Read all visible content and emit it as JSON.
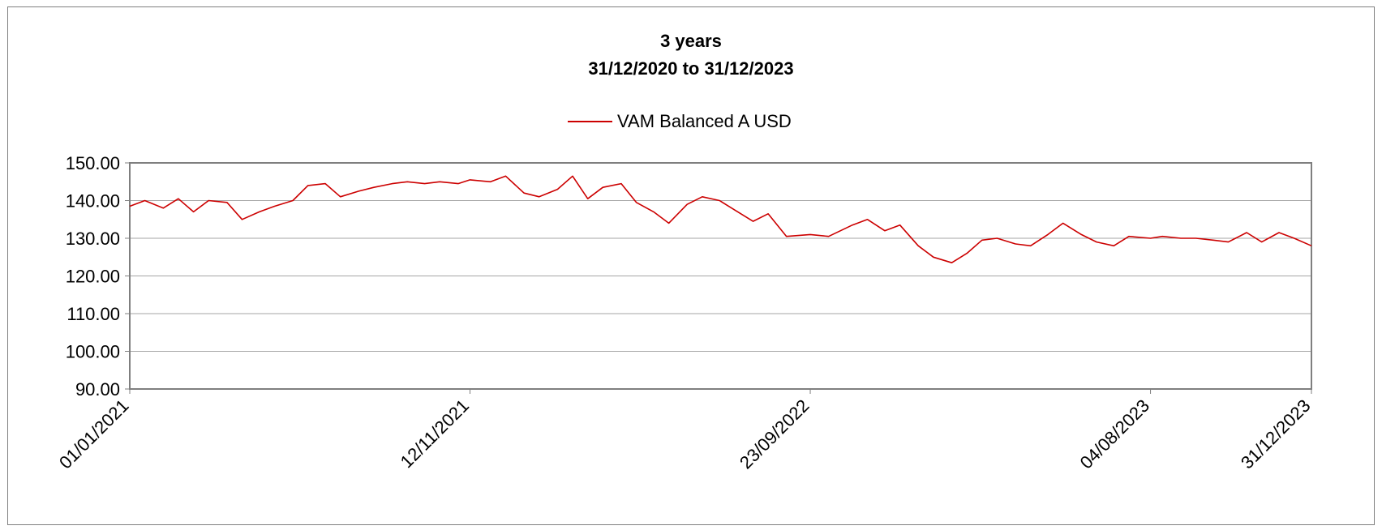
{
  "chart_data": {
    "type": "line",
    "title": "3 years",
    "subtitle": "31/12/2020 to 31/12/2023",
    "xlabel": "",
    "ylabel": "",
    "ylim": [
      90,
      150
    ],
    "yticks": [
      "150.00",
      "140.00",
      "130.00",
      "120.00",
      "110.00",
      "100.00",
      "90.00"
    ],
    "ytick_values": [
      150,
      140,
      130,
      120,
      110,
      100,
      90
    ],
    "xlim": [
      "01/01/2021",
      "31/12/2023"
    ],
    "xticks": [
      "01/01/2021",
      "12/11/2021",
      "23/09/2022",
      "04/08/2023",
      "31/12/2023"
    ],
    "grid": true,
    "legend_position": "top-center",
    "series_color": "#cc0000",
    "series": [
      {
        "name": "VAM Balanced A USD",
        "x": [
          "01/01/2021",
          "15/01/2021",
          "01/02/2021",
          "15/02/2021",
          "01/03/2021",
          "15/03/2021",
          "01/04/2021",
          "15/04/2021",
          "01/05/2021",
          "15/05/2021",
          "01/06/2021",
          "15/06/2021",
          "01/07/2021",
          "15/07/2021",
          "01/08/2021",
          "15/08/2021",
          "01/09/2021",
          "15/09/2021",
          "01/10/2021",
          "15/10/2021",
          "01/11/2021",
          "12/11/2021",
          "01/12/2021",
          "15/12/2021",
          "01/01/2022",
          "15/01/2022",
          "01/02/2022",
          "15/02/2022",
          "01/03/2022",
          "15/03/2022",
          "01/04/2022",
          "15/04/2022",
          "01/05/2022",
          "15/05/2022",
          "01/06/2022",
          "15/06/2022",
          "01/07/2022",
          "15/07/2022",
          "01/08/2022",
          "15/08/2022",
          "01/09/2022",
          "23/09/2022",
          "10/10/2022",
          "01/11/2022",
          "15/11/2022",
          "01/12/2022",
          "15/12/2022",
          "01/01/2023",
          "15/01/2023",
          "01/02/2023",
          "15/02/2023",
          "01/03/2023",
          "15/03/2023",
          "01/04/2023",
          "15/04/2023",
          "01/05/2023",
          "15/05/2023",
          "01/06/2023",
          "15/06/2023",
          "01/07/2023",
          "15/07/2023",
          "04/08/2023",
          "15/08/2023",
          "01/09/2023",
          "15/09/2023",
          "01/10/2023",
          "15/10/2023",
          "01/11/2023",
          "15/11/2023",
          "01/12/2023",
          "15/12/2023",
          "31/12/2023"
        ],
        "values": [
          138.5,
          140.0,
          138.0,
          140.5,
          137.0,
          140.0,
          139.5,
          135.0,
          137.0,
          138.5,
          140.0,
          144.0,
          144.5,
          141.0,
          142.5,
          143.5,
          144.5,
          145.0,
          144.5,
          145.0,
          144.5,
          145.5,
          145.0,
          146.5,
          142.0,
          141.0,
          143.0,
          146.5,
          140.5,
          143.5,
          144.5,
          139.5,
          137.0,
          134.0,
          139.0,
          141.0,
          140.0,
          137.5,
          134.5,
          136.5,
          130.5,
          131.0,
          130.5,
          133.5,
          135.0,
          132.0,
          133.5,
          128.0,
          125.0,
          123.5,
          126.0,
          129.5,
          130.0,
          128.5,
          128.0,
          131.0,
          134.0,
          131.0,
          129.0,
          128.0,
          130.5,
          130.0,
          130.5,
          130.0,
          130.0,
          129.5,
          129.0,
          131.5,
          129.0,
          131.5,
          130.0,
          128.0
        ]
      }
    ]
  }
}
